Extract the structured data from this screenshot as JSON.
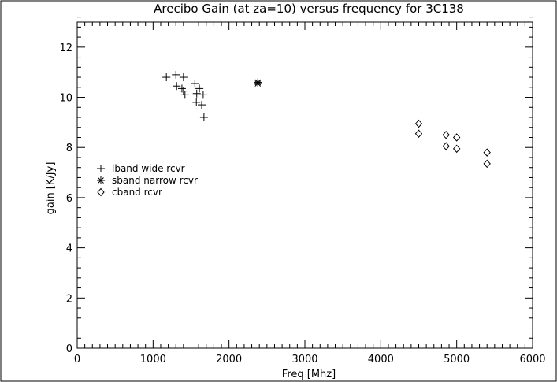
{
  "chart_data": {
    "type": "scatter",
    "title": "Arecibo Gain (at za=10) versus frequency for 3C138",
    "xlabel": "Freq [Mhz]",
    "ylabel": "gain [K/Jy]",
    "xlim": [
      0,
      6000
    ],
    "ylim": [
      0,
      13
    ],
    "x_ticks": [
      0,
      1000,
      2000,
      3000,
      4000,
      5000,
      6000
    ],
    "x_tick_labels": [
      "0",
      "1000",
      "2000",
      "3000",
      "4000",
      "5000",
      "6000"
    ],
    "y_ticks": [
      0,
      2,
      4,
      6,
      8,
      10,
      12
    ],
    "y_tick_labels": [
      "0",
      "2",
      "4",
      "6",
      "8",
      "10",
      "12"
    ],
    "grid": false,
    "legend_position": "left-middle",
    "series": [
      {
        "name": "lband wide rcvr",
        "marker": "plus",
        "points": [
          {
            "x": 1175,
            "y": 10.8
          },
          {
            "x": 1300,
            "y": 10.9
          },
          {
            "x": 1400,
            "y": 10.8
          },
          {
            "x": 1310,
            "y": 10.45
          },
          {
            "x": 1380,
            "y": 10.35
          },
          {
            "x": 1400,
            "y": 10.25
          },
          {
            "x": 1420,
            "y": 10.1
          },
          {
            "x": 1550,
            "y": 10.55
          },
          {
            "x": 1575,
            "y": 10.15
          },
          {
            "x": 1610,
            "y": 10.35
          },
          {
            "x": 1660,
            "y": 10.1
          },
          {
            "x": 1570,
            "y": 9.8
          },
          {
            "x": 1640,
            "y": 9.7
          },
          {
            "x": 1670,
            "y": 9.2
          }
        ]
      },
      {
        "name": "sband narrow rcvr",
        "marker": "asterisk",
        "points": [
          {
            "x": 2380,
            "y": 10.55
          },
          {
            "x": 2380,
            "y": 10.6
          }
        ]
      },
      {
        "name": "cband rcvr",
        "marker": "diamond",
        "points": [
          {
            "x": 4500,
            "y": 8.95
          },
          {
            "x": 4500,
            "y": 8.55
          },
          {
            "x": 4860,
            "y": 8.5
          },
          {
            "x": 4860,
            "y": 8.05
          },
          {
            "x": 5000,
            "y": 8.4
          },
          {
            "x": 5000,
            "y": 7.95
          },
          {
            "x": 5400,
            "y": 7.8
          },
          {
            "x": 5400,
            "y": 7.35
          }
        ]
      }
    ]
  }
}
